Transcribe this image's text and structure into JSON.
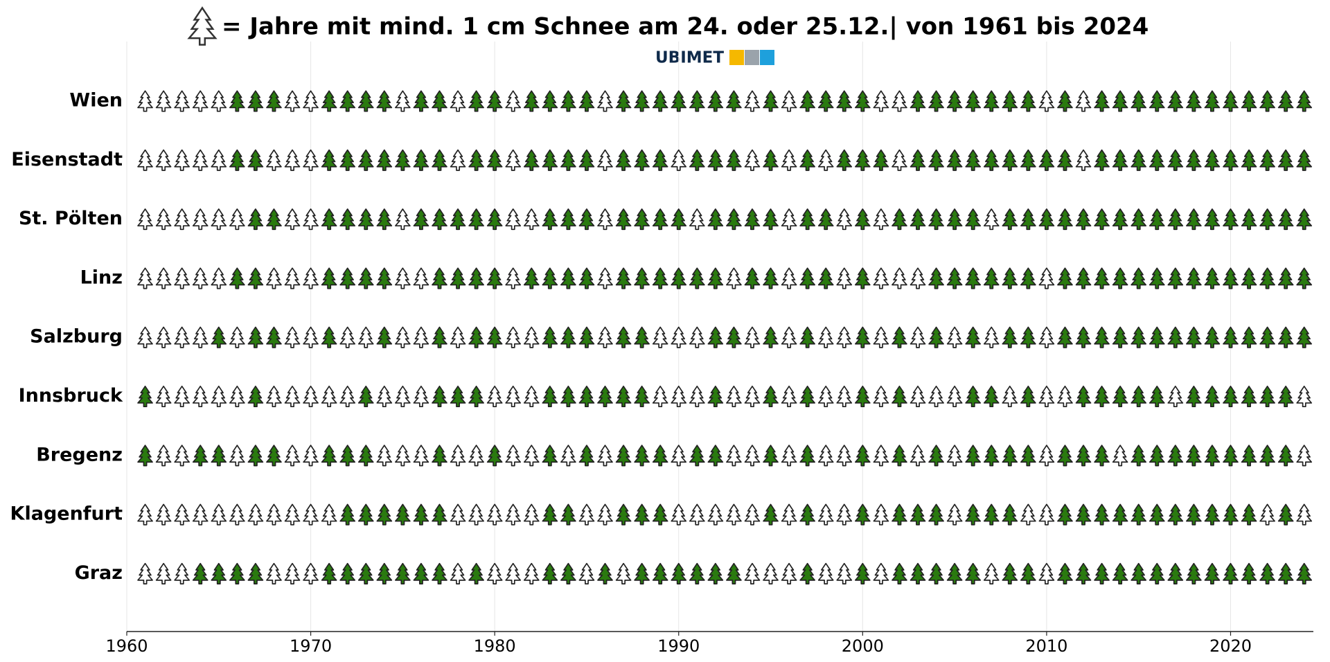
{
  "chart_data": {
    "type": "pictogram",
    "title": "= Jahre mit mind. 1 cm Schnee am 24. oder 25.12.| von 1961 bis 2024",
    "logo": "UBIMET",
    "snow_color": "#ffffff",
    "no_snow_color": "#2a7a0f",
    "xlim": [
      1960,
      2024.5
    ],
    "xticks": [
      1960,
      1970,
      1980,
      1990,
      2000,
      2010,
      2020
    ],
    "grid": true,
    "x": [
      1961,
      1962,
      1963,
      1964,
      1965,
      1966,
      1967,
      1968,
      1969,
      1970,
      1971,
      1972,
      1973,
      1974,
      1975,
      1976,
      1977,
      1978,
      1979,
      1980,
      1981,
      1982,
      1983,
      1984,
      1985,
      1986,
      1987,
      1988,
      1989,
      1990,
      1991,
      1992,
      1993,
      1994,
      1995,
      1996,
      1997,
      1998,
      1999,
      2000,
      2001,
      2002,
      2003,
      2004,
      2005,
      2006,
      2007,
      2008,
      2009,
      2010,
      2011,
      2012,
      2013,
      2014,
      2015,
      2016,
      2017,
      2018,
      2019,
      2020,
      2021,
      2022,
      2023,
      2024
    ],
    "series": [
      {
        "name": "Wien",
        "values": [
          1,
          1,
          1,
          1,
          1,
          0,
          0,
          0,
          1,
          1,
          0,
          0,
          0,
          0,
          1,
          0,
          0,
          1,
          0,
          0,
          1,
          0,
          0,
          0,
          0,
          1,
          0,
          0,
          0,
          0,
          0,
          0,
          0,
          1,
          0,
          1,
          0,
          0,
          0,
          0,
          1,
          1,
          0,
          0,
          0,
          0,
          0,
          0,
          0,
          1,
          0,
          1,
          0,
          0,
          0,
          0,
          0,
          0,
          0,
          0,
          0,
          0,
          0,
          0
        ]
      },
      {
        "name": "Eisenstadt",
        "values": [
          1,
          1,
          1,
          1,
          1,
          0,
          0,
          1,
          1,
          1,
          0,
          0,
          0,
          0,
          0,
          0,
          0,
          1,
          0,
          0,
          1,
          0,
          0,
          0,
          0,
          1,
          0,
          0,
          0,
          1,
          0,
          0,
          0,
          1,
          0,
          1,
          0,
          1,
          0,
          0,
          0,
          1,
          0,
          0,
          0,
          0,
          0,
          0,
          0,
          0,
          0,
          1,
          0,
          0,
          0,
          0,
          0,
          0,
          0,
          0,
          0,
          0,
          0,
          0
        ]
      },
      {
        "name": "St. Pölten",
        "values": [
          1,
          1,
          1,
          1,
          1,
          1,
          0,
          0,
          1,
          1,
          0,
          0,
          0,
          0,
          1,
          0,
          0,
          0,
          0,
          0,
          1,
          1,
          0,
          0,
          0,
          1,
          0,
          0,
          0,
          0,
          1,
          0,
          0,
          0,
          0,
          1,
          0,
          0,
          1,
          0,
          1,
          0,
          0,
          0,
          0,
          0,
          1,
          0,
          0,
          0,
          0,
          0,
          0,
          0,
          0,
          0,
          0,
          0,
          0,
          0,
          0,
          0,
          0,
          0
        ]
      },
      {
        "name": "Linz",
        "values": [
          1,
          1,
          1,
          1,
          1,
          0,
          0,
          1,
          1,
          1,
          0,
          0,
          0,
          0,
          1,
          1,
          0,
          0,
          0,
          0,
          1,
          0,
          0,
          0,
          0,
          1,
          0,
          0,
          0,
          0,
          0,
          0,
          1,
          0,
          0,
          1,
          0,
          0,
          1,
          0,
          1,
          1,
          1,
          0,
          0,
          0,
          0,
          0,
          0,
          1,
          0,
          0,
          0,
          0,
          0,
          0,
          0,
          0,
          0,
          0,
          0,
          0,
          0,
          0
        ]
      },
      {
        "name": "Salzburg",
        "values": [
          1,
          1,
          1,
          1,
          0,
          1,
          0,
          0,
          1,
          1,
          0,
          1,
          1,
          0,
          1,
          1,
          0,
          1,
          0,
          0,
          1,
          1,
          0,
          0,
          0,
          1,
          0,
          0,
          1,
          1,
          1,
          0,
          0,
          1,
          0,
          1,
          0,
          1,
          1,
          0,
          1,
          0,
          1,
          0,
          1,
          0,
          1,
          0,
          0,
          1,
          0,
          0,
          0,
          0,
          0,
          0,
          0,
          0,
          0,
          0,
          0,
          0,
          0,
          0
        ]
      },
      {
        "name": "Innsbruck",
        "values": [
          0,
          1,
          1,
          1,
          1,
          1,
          0,
          1,
          1,
          1,
          1,
          1,
          0,
          1,
          1,
          1,
          0,
          0,
          0,
          1,
          1,
          1,
          0,
          0,
          0,
          0,
          0,
          0,
          1,
          1,
          1,
          0,
          1,
          1,
          0,
          1,
          0,
          1,
          1,
          0,
          1,
          0,
          1,
          1,
          1,
          0,
          0,
          1,
          0,
          1,
          1,
          0,
          0,
          0,
          0,
          0,
          1,
          0,
          0,
          0,
          0,
          0,
          0,
          1
        ]
      },
      {
        "name": "Bregenz",
        "values": [
          0,
          1,
          1,
          0,
          0,
          1,
          0,
          0,
          1,
          1,
          0,
          0,
          0,
          1,
          1,
          1,
          0,
          1,
          1,
          0,
          1,
          1,
          0,
          1,
          0,
          1,
          0,
          0,
          0,
          1,
          0,
          0,
          1,
          1,
          0,
          1,
          0,
          1,
          1,
          0,
          1,
          0,
          1,
          0,
          1,
          0,
          0,
          0,
          0,
          1,
          0,
          0,
          0,
          1,
          0,
          0,
          0,
          0,
          0,
          0,
          0,
          0,
          0,
          1
        ]
      },
      {
        "name": "Klagenfurt",
        "values": [
          1,
          1,
          1,
          1,
          1,
          1,
          1,
          1,
          1,
          1,
          1,
          0,
          0,
          0,
          0,
          0,
          0,
          1,
          1,
          1,
          1,
          1,
          0,
          0,
          1,
          1,
          0,
          0,
          0,
          1,
          1,
          1,
          1,
          1,
          0,
          1,
          0,
          1,
          1,
          0,
          1,
          0,
          0,
          0,
          1,
          0,
          0,
          0,
          1,
          1,
          0,
          0,
          0,
          0,
          0,
          0,
          0,
          0,
          0,
          0,
          0,
          1,
          0,
          1
        ]
      },
      {
        "name": "Graz",
        "values": [
          1,
          1,
          1,
          0,
          0,
          0,
          0,
          1,
          1,
          1,
          0,
          0,
          0,
          0,
          0,
          0,
          0,
          1,
          0,
          1,
          1,
          1,
          0,
          0,
          1,
          0,
          1,
          0,
          0,
          0,
          0,
          0,
          0,
          1,
          1,
          1,
          0,
          1,
          1,
          0,
          1,
          0,
          0,
          0,
          0,
          0,
          1,
          0,
          0,
          1,
          0,
          0,
          0,
          0,
          0,
          0,
          0,
          0,
          0,
          0,
          0,
          0,
          0,
          0
        ]
      }
    ]
  }
}
